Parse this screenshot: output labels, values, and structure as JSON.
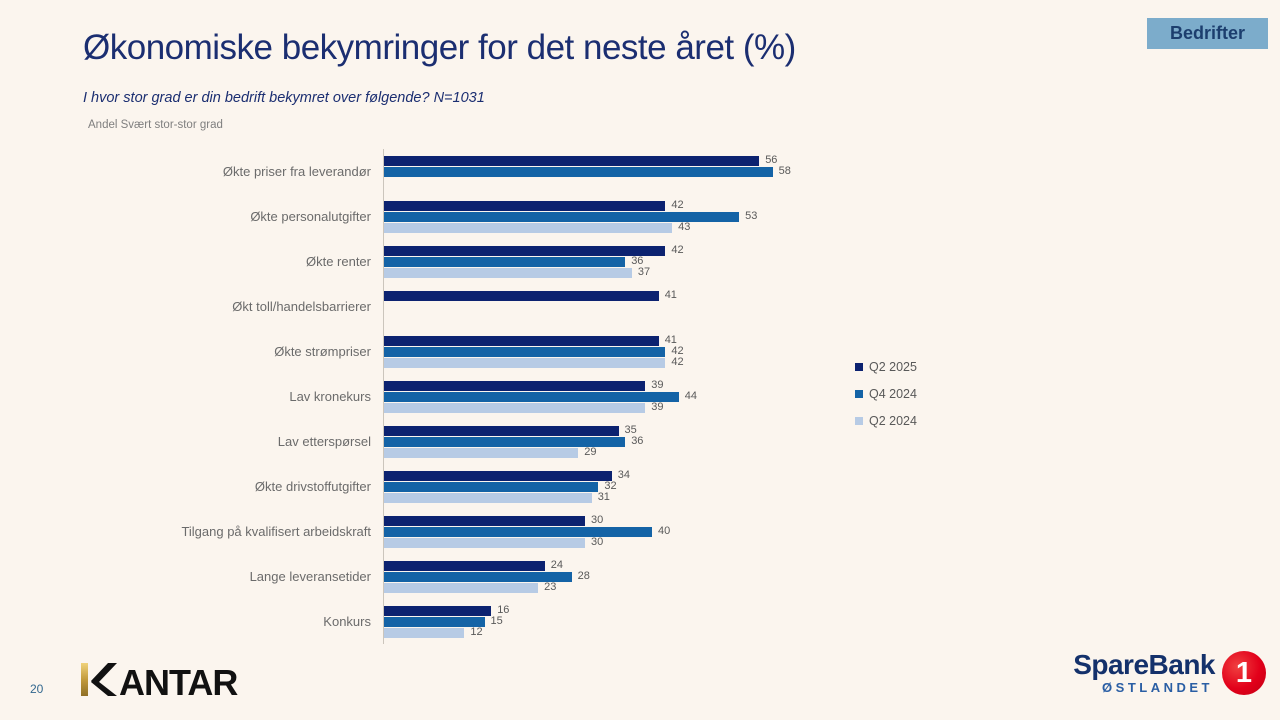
{
  "slide": {
    "tag": "Bedrifter",
    "title": "Økonomiske bekymringer for det neste året (%)",
    "subtitle": "I hvor stor grad er din bedrift bekymret over følgende? N=1031",
    "measure_note": "Andel Svært stor-stor grad",
    "page_number": "20"
  },
  "branding": {
    "kantar_text": "ANTAR",
    "sparebank_name": "SpareBank",
    "sparebank_region": "ØSTLANDET",
    "sparebank_badge": "1"
  },
  "colors": {
    "background": "#FBF5EE",
    "title_navy": "#1B2E71",
    "tag_background": "#7CACCB",
    "axis_line": "#CBC5BC",
    "value_label_gray": "#595959",
    "sparebank_red": "#E2001A",
    "kantar_gold": "#C29A3C",
    "series_dark": "#0C2270",
    "series_medium": "#1463A6",
    "series_light": "#B7CBE5"
  },
  "chart_data": {
    "type": "bar",
    "orientation": "horizontal",
    "title": "Økonomiske bekymringer for det neste året (%)",
    "subtitle": "Andel Svært stor-stor grad",
    "xlabel": "",
    "ylabel": "",
    "xlim": [
      0,
      60
    ],
    "grid": false,
    "value_labels": true,
    "legend_position": "right",
    "categories": [
      "Økte priser fra leverandør",
      "Økte personalutgifter",
      "Økte renter",
      "Økt toll/handelsbarrierer",
      "Økte strømpriser",
      "Lav kronekurs",
      "Lav etterspørsel",
      "Økte drivstoffutgifter",
      "Tilgang på kvalifisert arbeidskraft",
      "Lange leveransetider",
      "Konkurs"
    ],
    "series": [
      {
        "name": "Q2 2025",
        "color": "#0C2270",
        "values": [
          56,
          42,
          42,
          41,
          41,
          39,
          35,
          34,
          30,
          24,
          16
        ]
      },
      {
        "name": "Q4 2024",
        "color": "#1463A6",
        "values": [
          58,
          53,
          36,
          null,
          42,
          44,
          36,
          32,
          40,
          28,
          15
        ]
      },
      {
        "name": "Q2 2024",
        "color": "#B7CBE5",
        "values": [
          null,
          43,
          37,
          null,
          42,
          39,
          29,
          31,
          30,
          23,
          12
        ]
      }
    ]
  }
}
